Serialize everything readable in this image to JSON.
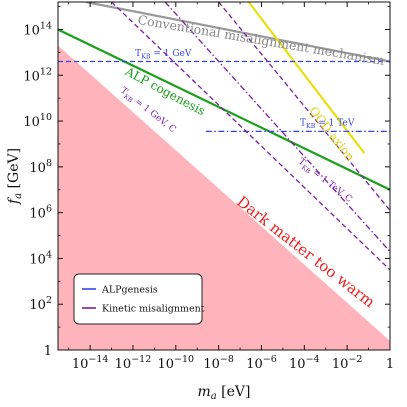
{
  "chart_data": {
    "type": "line",
    "title": "",
    "xlabel": "m_a [eV]",
    "ylabel": "f_a [GeV]",
    "xscale": "log",
    "yscale": "log",
    "xlim_log10": [
      -15.5,
      0
    ],
    "ylim_log10": [
      0,
      15.2
    ],
    "x_ticks": [
      {
        "log": -14,
        "label": "10",
        "exp": "−14"
      },
      {
        "log": -12,
        "label": "10",
        "exp": "−12"
      },
      {
        "log": -10,
        "label": "10",
        "exp": "−10"
      },
      {
        "log": -8,
        "label": "10",
        "exp": "−8"
      },
      {
        "log": -6,
        "label": "10",
        "exp": "−6"
      },
      {
        "log": -4,
        "label": "10",
        "exp": "−4"
      },
      {
        "log": -2,
        "label": "10",
        "exp": "−2"
      },
      {
        "log": 0,
        "label": "1",
        "exp": ""
      }
    ],
    "y_ticks": [
      {
        "log": 0,
        "label": "1",
        "exp": ""
      },
      {
        "log": 2,
        "label": "10",
        "exp": "2"
      },
      {
        "log": 4,
        "label": "10",
        "exp": "4"
      },
      {
        "log": 6,
        "label": "10",
        "exp": "6"
      },
      {
        "log": 8,
        "label": "10",
        "exp": "8"
      },
      {
        "log": 10,
        "label": "10",
        "exp": "10"
      },
      {
        "log": 12,
        "label": "10",
        "exp": "12"
      },
      {
        "log": 14,
        "label": "10",
        "exp": "14"
      }
    ],
    "region": {
      "label": "Dark matter too warm",
      "color": "#ffb3ba",
      "label_color": "#ee1c1c",
      "boundary_log": [
        [
          -15.5,
          13.3
        ],
        [
          0,
          0.4
        ]
      ]
    },
    "series": [
      {
        "label": "Conventional misalignment mechanism",
        "color": "#999999",
        "style": "solid",
        "points_log": [
          [
            -14.2,
            15.2
          ],
          [
            0,
            12.6
          ]
        ]
      },
      {
        "label": "QCD axion",
        "color": "#e8df12",
        "style": "solid",
        "points_log": [
          [
            -6.6,
            15.2
          ],
          [
            -1.2,
            8.6
          ]
        ]
      },
      {
        "label": "ALP cogenesis",
        "color": "#1aa01a",
        "style": "solid",
        "points_log": [
          [
            -15.5,
            14.0
          ],
          [
            0,
            7.0
          ]
        ]
      },
      {
        "label": "T_KB = 1 GeV",
        "color": "#3344ee",
        "style": "dashed",
        "points_log": [
          [
            -15.5,
            12.6
          ],
          [
            0,
            12.6
          ]
        ]
      },
      {
        "label": "T_KB = 1 TeV",
        "color": "#3344ee",
        "style": "dashdot",
        "points_log": [
          [
            -8.6,
            9.55
          ],
          [
            0,
            9.55
          ]
        ]
      },
      {
        "label": "T_KB = 1 GeV, C",
        "color": "#7a1fa2",
        "style": "dashed",
        "points_log": [
          [
            -13.0,
            15.2
          ],
          [
            0,
            3.5
          ]
        ]
      },
      {
        "label": "T_KB = 1 TeV, C",
        "color": "#7a1fa2",
        "style": "dashdot",
        "points_log": [
          [
            -10.5,
            15.2
          ],
          [
            0,
            4.3
          ]
        ]
      },
      {
        "label": "",
        "color": "#7a1fa2",
        "style": "dashed",
        "points_log": [
          [
            -8.0,
            15.2
          ],
          [
            0,
            6.1
          ]
        ]
      }
    ],
    "legend": {
      "placement": "lower-left",
      "items": [
        {
          "label": "ALPgenesis",
          "color": "#3344ee"
        },
        {
          "label": "Kinetic misalignment",
          "color": "#7a1fa2"
        }
      ]
    },
    "annotations": [
      {
        "name": "annotation-conventional-misalignment",
        "text": "Conventional misalignment mechanism",
        "color": "#888888",
        "pos_log": [
          -11.8,
          14.25
        ],
        "rot": 9.5,
        "size": 12.5
      },
      {
        "name": "annotation-qcd-axion",
        "text": "QCD axion",
        "color": "#e0d010",
        "pos_log": [
          -3.8,
          10.45
        ],
        "rot": 52,
        "size": 12
      },
      {
        "name": "annotation-alp-cogenesis",
        "text": "ALP cogenesis",
        "color": "#1aa01a",
        "pos_log": [
          -12.4,
          12.05
        ],
        "rot": 28,
        "size": 12
      },
      {
        "name": "annotation-tkb-1gev",
        "text": "T_KB = 1 GeV",
        "sub": "KB",
        "color": "#3344ee",
        "pos_log": [
          -11.9,
          12.85
        ],
        "rot": 0,
        "size": 9
      },
      {
        "name": "annotation-tkb-1tev",
        "text": "T_KB = 1 TeV",
        "sub": "KB",
        "color": "#3344ee",
        "pos_log": [
          -4.2,
          9.8
        ],
        "rot": 0,
        "size": 9
      },
      {
        "name": "annotation-tkb-1gev-c",
        "text": "T_KB = 1 GeV, C",
        "sub": "KB",
        "color": "#7a1fa2",
        "pos_log": [
          -12.6,
          11.3
        ],
        "rot": 38,
        "size": 9
      },
      {
        "name": "annotation-tkb-1tev-c",
        "text": "T_KB = 1 TeV, C",
        "sub": "KB",
        "color": "#7a1fa2",
        "pos_log": [
          -4.3,
          8.2
        ],
        "rot": 38,
        "size": 9
      },
      {
        "name": "annotation-dark-matter-too-warm",
        "text": "Dark matter too warm",
        "color": "#ee1c1c",
        "pos_log": [
          -7.2,
          6.4
        ],
        "rot": 38,
        "size": 15
      }
    ]
  }
}
